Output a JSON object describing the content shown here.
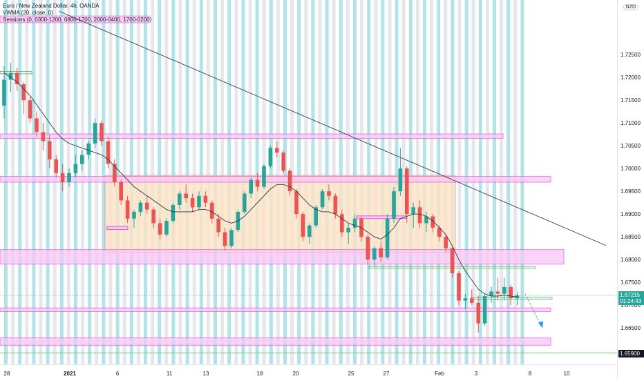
{
  "legend": {
    "line1": "Euro / New Zealand Dollar, 4h, OANDA",
    "line2": "VWMA (20, close, 0)",
    "line3": "Sessions (0, 0300-1200, 0800-1700, 2000-0400, 1700-0200)"
  },
  "currency_badge": "NZD",
  "tags": {
    "price": "1.67215",
    "countdown": "01:24:43",
    "bottom": "1.65900"
  },
  "colors": {
    "bull": "#26a69a",
    "bear": "#ef5350",
    "vwma": "#2a3549",
    "session_cyan": "#4fc3cf",
    "session_grey": "#c5cad3",
    "zone_fill": "#f9c6f6",
    "zone_border": "#d63fd6",
    "box_fill": "#fde3c6",
    "box_border": "#f08c8c",
    "trendline": "#3b3f4a",
    "green_lines": "#4caf50",
    "price_tag_bg": "#26a69a",
    "bottom_tag_bg": "#131722",
    "projection_arrow": "#2196f3"
  },
  "chart_data": {
    "type": "candlestick",
    "title": "Euro / New Zealand Dollar, 4h, OANDA",
    "ylim": [
      1.657,
      1.737
    ],
    "y_ticks": [
      "1.72500",
      "1.72000",
      "1.71500",
      "1.71000",
      "1.70500",
      "1.70000",
      "1.69500",
      "1.69000",
      "1.68500",
      "1.68000",
      "1.67500",
      "1.67000",
      "1.66500"
    ],
    "x_ticks": [
      "28",
      "2021",
      "6",
      "11",
      "13",
      "18",
      "20",
      "25",
      "27",
      "Feb",
      "3",
      "8",
      "10"
    ],
    "last_price": 1.67215,
    "ohlc": [
      [
        1.7138,
        1.7225,
        1.711,
        1.7195
      ],
      [
        1.7195,
        1.7232,
        1.7168,
        1.721
      ],
      [
        1.721,
        1.7221,
        1.717,
        1.7185
      ],
      [
        1.7185,
        1.719,
        1.712,
        1.715
      ],
      [
        1.715,
        1.716,
        1.71,
        1.711
      ],
      [
        1.711,
        1.7125,
        1.707,
        1.708
      ],
      [
        1.708,
        1.71,
        1.704,
        1.706
      ],
      [
        1.706,
        1.7075,
        1.7,
        1.702
      ],
      [
        1.702,
        1.703,
        1.698,
        1.699
      ],
      [
        1.699,
        1.701,
        1.695,
        1.697
      ],
      [
        1.697,
        1.7,
        1.696,
        1.699
      ],
      [
        1.699,
        1.703,
        1.698,
        1.701
      ],
      [
        1.701,
        1.704,
        1.6995,
        1.703
      ],
      [
        1.703,
        1.706,
        1.702,
        1.7055
      ],
      [
        1.7055,
        1.711,
        1.7045,
        1.71
      ],
      [
        1.71,
        1.7105,
        1.705,
        1.706
      ],
      [
        1.706,
        1.707,
        1.7,
        1.701
      ],
      [
        1.701,
        1.702,
        1.696,
        1.697
      ],
      [
        1.697,
        1.6975,
        1.692,
        1.693
      ],
      [
        1.693,
        1.694,
        1.688,
        1.689
      ],
      [
        1.689,
        1.691,
        1.687,
        1.6905
      ],
      [
        1.6905,
        1.693,
        1.6895,
        1.6925
      ],
      [
        1.6925,
        1.694,
        1.69,
        1.691
      ],
      [
        1.691,
        1.6915,
        1.687,
        1.688
      ],
      [
        1.688,
        1.689,
        1.6845,
        1.6855
      ],
      [
        1.6855,
        1.689,
        1.685,
        1.6885
      ],
      [
        1.6885,
        1.6925,
        1.688,
        1.692
      ],
      [
        1.692,
        1.695,
        1.691,
        1.6945
      ],
      [
        1.6945,
        1.6965,
        1.6925,
        1.6935
      ],
      [
        1.6935,
        1.6945,
        1.6905,
        1.6915
      ],
      [
        1.6915,
        1.695,
        1.691,
        1.694
      ],
      [
        1.694,
        1.695,
        1.6915,
        1.6925
      ],
      [
        1.6925,
        1.693,
        1.688,
        1.689
      ],
      [
        1.689,
        1.69,
        1.685,
        1.686
      ],
      [
        1.686,
        1.687,
        1.682,
        1.683
      ],
      [
        1.683,
        1.687,
        1.6825,
        1.6865
      ],
      [
        1.6865,
        1.691,
        1.686,
        1.6905
      ],
      [
        1.6905,
        1.695,
        1.69,
        1.6945
      ],
      [
        1.6945,
        1.698,
        1.6935,
        1.6975
      ],
      [
        1.6975,
        1.699,
        1.695,
        1.696
      ],
      [
        1.696,
        1.701,
        1.6955,
        1.7005
      ],
      [
        1.7005,
        1.705,
        1.7,
        1.7045
      ],
      [
        1.7045,
        1.706,
        1.7025,
        1.7035
      ],
      [
        1.7035,
        1.704,
        1.699,
        1.6995
      ],
      [
        1.6995,
        1.7,
        1.694,
        1.695
      ],
      [
        1.695,
        1.6955,
        1.689,
        1.69
      ],
      [
        1.69,
        1.6905,
        1.684,
        1.685
      ],
      [
        1.685,
        1.688,
        1.6835,
        1.6875
      ],
      [
        1.6875,
        1.692,
        1.687,
        1.6915
      ],
      [
        1.6915,
        1.6955,
        1.691,
        1.695
      ],
      [
        1.695,
        1.6965,
        1.693,
        1.694
      ],
      [
        1.694,
        1.6945,
        1.689,
        1.69
      ],
      [
        1.69,
        1.691,
        1.685,
        1.686
      ],
      [
        1.686,
        1.688,
        1.6835,
        1.687
      ],
      [
        1.687,
        1.69,
        1.686,
        1.689
      ],
      [
        1.689,
        1.6895,
        1.684,
        1.685
      ],
      [
        1.685,
        1.6855,
        1.679,
        1.68
      ],
      [
        1.68,
        1.683,
        1.6785,
        1.6825
      ],
      [
        1.6825,
        1.684,
        1.6795,
        1.6805
      ],
      [
        1.6805,
        1.69,
        1.68,
        1.689
      ],
      [
        1.689,
        1.696,
        1.688,
        1.695
      ],
      [
        1.695,
        1.7045,
        1.694,
        1.7
      ],
      [
        1.7,
        1.7005,
        1.688,
        1.69
      ],
      [
        1.69,
        1.6925,
        1.687,
        1.6915
      ],
      [
        1.6915,
        1.693,
        1.687,
        1.688
      ],
      [
        1.688,
        1.6905,
        1.686,
        1.6895
      ],
      [
        1.6895,
        1.69,
        1.686,
        1.687
      ],
      [
        1.687,
        1.6875,
        1.684,
        1.685
      ],
      [
        1.685,
        1.6855,
        1.6815,
        1.6825
      ],
      [
        1.6825,
        1.683,
        1.676,
        1.677
      ],
      [
        1.677,
        1.6775,
        1.67,
        1.671
      ],
      [
        1.671,
        1.6725,
        1.669,
        1.6715
      ],
      [
        1.6715,
        1.6735,
        1.67,
        1.6705
      ],
      [
        1.6705,
        1.672,
        1.664,
        1.666
      ],
      [
        1.666,
        1.6725,
        1.6655,
        1.672
      ],
      [
        1.672,
        1.674,
        1.6705,
        1.673
      ],
      [
        1.673,
        1.676,
        1.671,
        1.6725
      ],
      [
        1.6725,
        1.676,
        1.671,
        1.674
      ],
      [
        1.674,
        1.6745,
        1.67,
        1.6715
      ],
      [
        1.6715,
        1.673,
        1.67,
        1.67215
      ]
    ],
    "vwma": [
      1.721,
      1.72,
      1.719,
      1.7175,
      1.716,
      1.714,
      1.712,
      1.71,
      1.708,
      1.7065,
      1.7055,
      1.705,
      1.7045,
      1.704,
      1.7035,
      1.703,
      1.702,
      1.7005,
      1.699,
      1.6975,
      1.696,
      1.695,
      1.694,
      1.693,
      1.692,
      1.691,
      1.6905,
      1.6905,
      1.6905,
      1.6905,
      1.691,
      1.691,
      1.6905,
      1.6895,
      1.6885,
      1.688,
      1.6885,
      1.6895,
      1.691,
      1.6925,
      1.694,
      1.6955,
      1.6965,
      1.6965,
      1.696,
      1.695,
      1.6935,
      1.692,
      1.691,
      1.6905,
      1.6905,
      1.69,
      1.689,
      1.688,
      1.6875,
      1.687,
      1.686,
      1.685,
      1.6845,
      1.6855,
      1.687,
      1.689,
      1.6895,
      1.69,
      1.69,
      1.6895,
      1.6885,
      1.687,
      1.6855,
      1.683,
      1.68,
      1.6775,
      1.6755,
      1.6735,
      1.6725,
      1.672,
      1.672,
      1.6722,
      1.672,
      1.6718
    ]
  }
}
